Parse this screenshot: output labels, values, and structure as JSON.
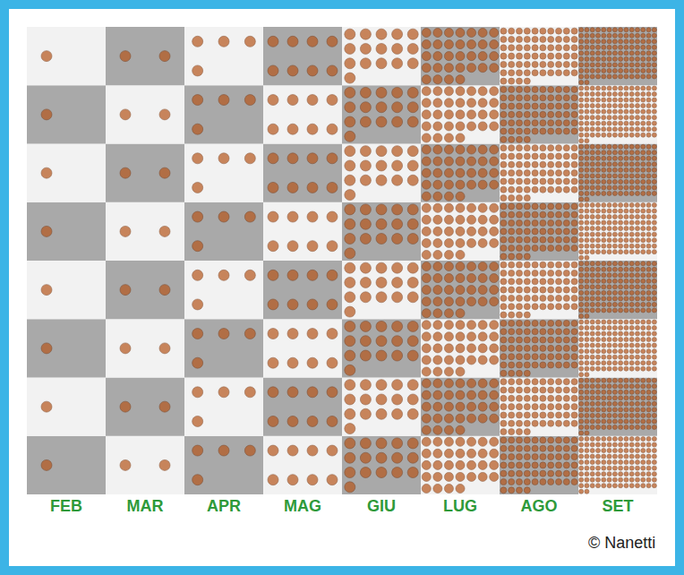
{
  "chart_data": {
    "type": "pictograph",
    "categories": [
      "FEB",
      "MAR",
      "APR",
      "MAG",
      "GIU",
      "LUG",
      "AGO",
      "SET"
    ],
    "values": [
      1,
      2,
      4,
      8,
      16,
      32,
      64,
      128
    ],
    "color": "#b5561c",
    "tick_labels": "x",
    "annotations": [
      "© Nanetti"
    ]
  }
}
